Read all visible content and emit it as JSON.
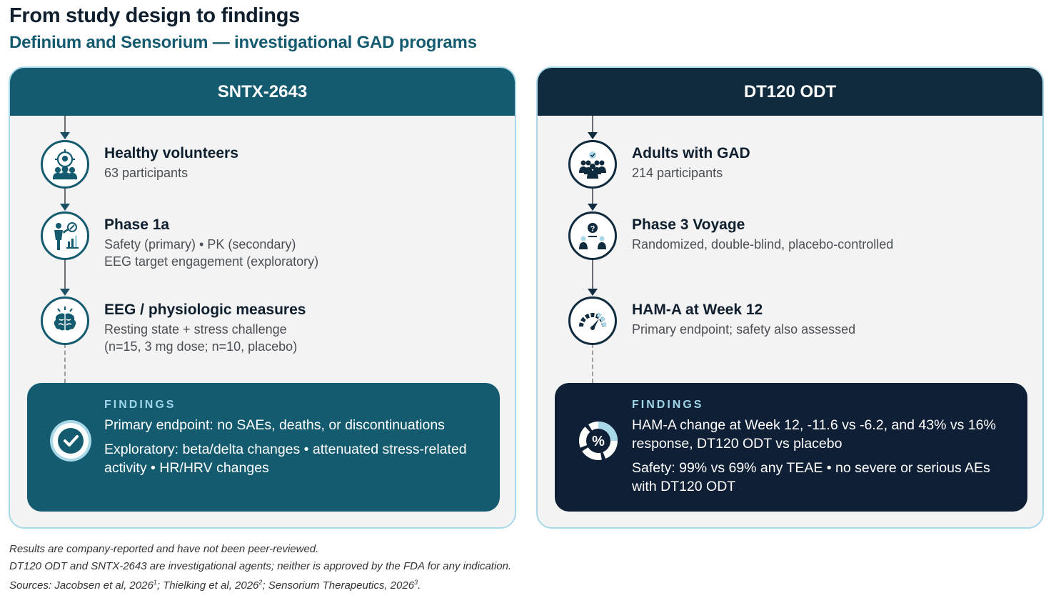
{
  "title": "From study design to findings",
  "subtitle": "Definium and Sensorium — investigational GAD programs",
  "colors": {
    "teal": "#145b70",
    "navy": "#0f2b3d",
    "light_blue": "#a9d8e8",
    "findings_label": "#9fd6ea"
  },
  "programs": [
    {
      "name": "SNTX-2643",
      "steps": [
        {
          "icon": "target-group-icon",
          "title": "Healthy volunteers",
          "lines": [
            "63 participants"
          ]
        },
        {
          "icon": "clinician-chart-icon",
          "title": "Phase 1a",
          "lines": [
            "Safety (primary) • PK (secondary)",
            "EEG target engagement (exploratory)"
          ]
        },
        {
          "icon": "brain-icon",
          "title": "EEG / physiologic measures",
          "lines": [
            "Resting state + stress challenge",
            "(n=15, 3 mg dose; n=10, placebo)"
          ]
        }
      ],
      "findings": {
        "label": "FINDINGS",
        "icon": "check-circle-icon",
        "paragraphs": [
          "Primary endpoint: no SAEs, deaths, or discontinuations",
          "Exploratory: beta/delta changes • attenuated stress-related activity • HR/HRV changes"
        ]
      }
    },
    {
      "name": "DT120 ODT",
      "steps": [
        {
          "icon": "people-group-icon",
          "title": "Adults with GAD",
          "lines": [
            "214 participants"
          ]
        },
        {
          "icon": "question-people-icon",
          "title": "Phase 3 Voyage",
          "lines": [
            "Randomized, double-blind, placebo-controlled"
          ]
        },
        {
          "icon": "gauge-icon",
          "title": "HAM-A at Week 12",
          "lines": [
            "Primary endpoint; safety also assessed"
          ]
        }
      ],
      "findings": {
        "label": "FINDINGS",
        "icon": "percent-donut-icon",
        "paragraphs": [
          "HAM-A change at Week 12, -11.6 vs -6.2, and 43% vs 16% response, DT120 ODT vs placebo",
          "Safety: 99% vs 69% any TEAE • no severe or serious AEs with DT120 ODT"
        ]
      }
    }
  ],
  "footnotes": {
    "line1": "Results are company-reported and have not been peer-reviewed.",
    "line2": "DT120 ODT and SNTX-2643 are investigational agents; neither is approved by the FDA for any indication.",
    "line3_a": "Sources: Jacobsen et al, 2026",
    "sup1": "1",
    "line3_b": "; Thielking et al, 2026",
    "sup2": "2",
    "line3_c": "; Sensorium Therapeutics, 2026",
    "sup3": "3",
    "line3_d": "."
  }
}
